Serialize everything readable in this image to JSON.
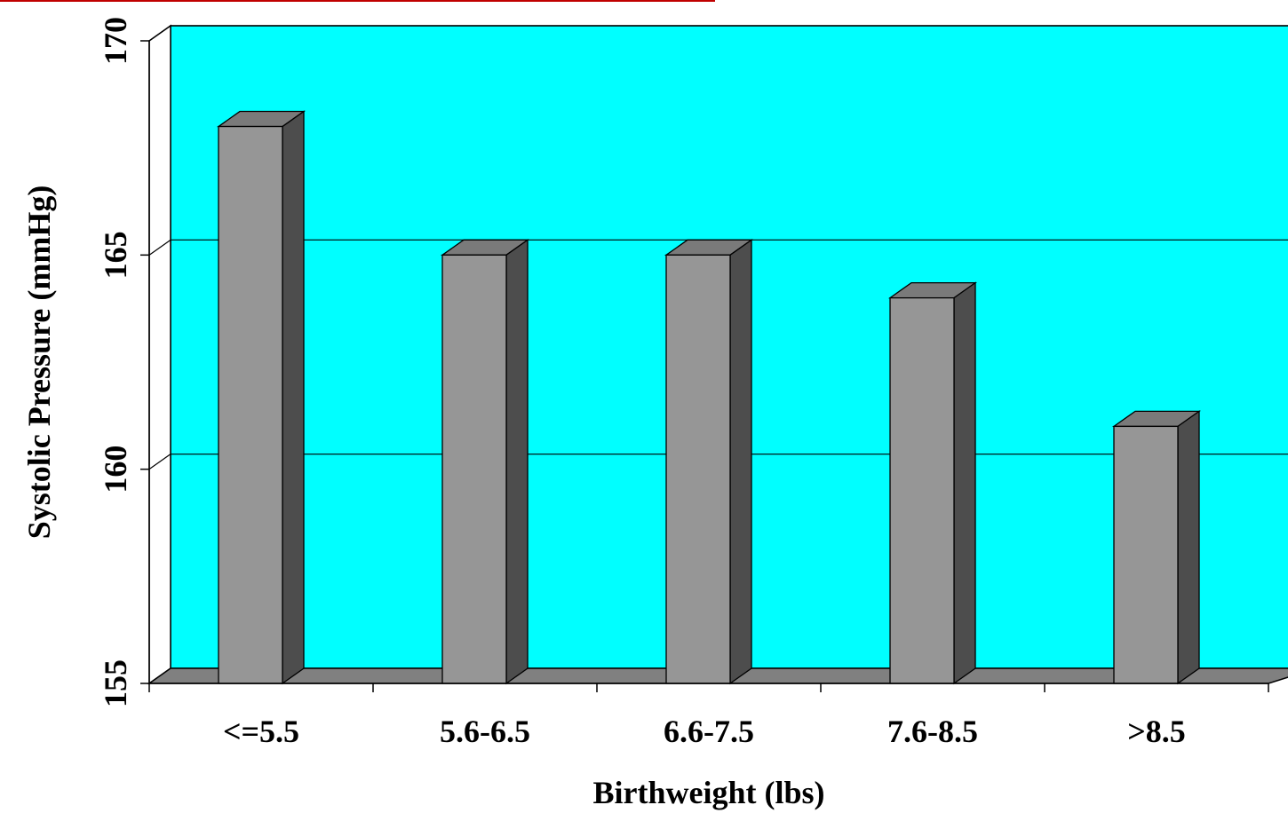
{
  "colors": {
    "background": "#ffffff",
    "plot_back": "#00ffff",
    "floor": "#808080",
    "bar_front": "#969696",
    "bar_side": "#4d4d4d",
    "bar_top": "#7a7a7a",
    "accent_line": "#c00000"
  },
  "chart_data": {
    "type": "bar",
    "title": "",
    "xlabel": "Birthweight (lbs)",
    "ylabel": "Systolic Pressure (mmHg)",
    "categories": [
      "<=5.5",
      "5.6-6.5",
      "6.6-7.5",
      "7.6-8.5",
      ">8.5"
    ],
    "values": [
      168,
      165,
      165,
      164,
      161
    ],
    "ylim": [
      155,
      170
    ],
    "yticks": [
      155,
      160,
      165,
      170
    ],
    "yticks_labels": [
      "155",
      "160",
      "165",
      "170"
    ],
    "grid": true,
    "legend": "none",
    "style": "3d-column"
  }
}
